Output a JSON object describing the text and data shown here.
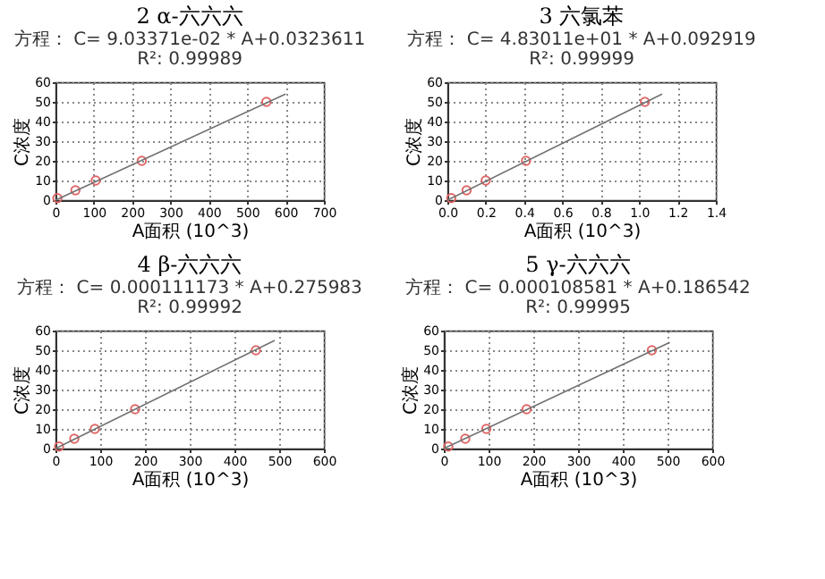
{
  "chart_data": [
    {
      "type": "scatter",
      "title": "2 α-六六六",
      "subtitle": "方程： C= 9.03371e-02 * A+0.0323611",
      "annotations": [
        "R²: 0.99989"
      ],
      "xlabel": "A面积 (10^3)",
      "ylabel": "C浓度",
      "xlim": [
        0,
        700
      ],
      "xticks": [
        0,
        100,
        200,
        300,
        400,
        500,
        600,
        700
      ],
      "ylim": [
        0,
        60
      ],
      "yticks": [
        0,
        10,
        20,
        30,
        40,
        50,
        60
      ],
      "grid": true,
      "series": [
        {
          "marker": "circle",
          "color": "#e06666",
          "x": [
            5,
            52,
            105,
            225,
            550
          ],
          "values": [
            1,
            5,
            10,
            20,
            50
          ]
        },
        {
          "type": "line",
          "color": "#707070",
          "x": [
            0,
            600
          ],
          "values": [
            0,
            54
          ]
        }
      ]
    },
    {
      "type": "scatter",
      "title": "3 六氯苯",
      "subtitle": "方程： C= 4.83011e+01 * A+0.092919",
      "annotations": [
        "R²: 0.99999"
      ],
      "xlabel": "A面积 (10^3)",
      "ylabel": "C浓度",
      "xlim": [
        0,
        1.4
      ],
      "xticks": [
        {
          "value": 0,
          "label": "0.0"
        },
        {
          "value": 0.2,
          "label": "0.2"
        },
        {
          "value": 0.4,
          "label": "0.4"
        },
        {
          "value": 0.6,
          "label": "0.6"
        },
        {
          "value": 0.8,
          "label": "0.8"
        },
        {
          "value": 1,
          "label": "1.0"
        },
        {
          "value": 1.2,
          "label": "1.2"
        },
        {
          "value": 1.4,
          "label": "1.4"
        }
      ],
      "ylim": [
        0,
        60
      ],
      "yticks": [
        0,
        10,
        20,
        30,
        40,
        50,
        60
      ],
      "grid": true,
      "series": [
        {
          "marker": "circle",
          "color": "#e06666",
          "x": [
            0.02,
            0.1,
            0.2,
            0.41,
            1.03
          ],
          "values": [
            1,
            5,
            10,
            20,
            50
          ]
        },
        {
          "type": "line",
          "color": "#707070",
          "x": [
            0,
            1.12
          ],
          "values": [
            0,
            54
          ]
        }
      ]
    },
    {
      "type": "scatter",
      "title": "4 β-六六六",
      "subtitle": "方程： C= 0.000111173 * A+0.275983",
      "annotations": [
        "R²: 0.99992"
      ],
      "xlabel": "A面积 (10^3)",
      "ylabel": "C浓度",
      "xlim": [
        0,
        600
      ],
      "xticks": [
        0,
        100,
        200,
        300,
        400,
        500,
        600
      ],
      "ylim": [
        0,
        60
      ],
      "yticks": [
        0,
        10,
        20,
        30,
        40,
        50,
        60
      ],
      "grid": true,
      "series": [
        {
          "marker": "circle",
          "color": "#e06666",
          "x": [
            8,
            42,
            88,
            178,
            448
          ],
          "values": [
            1,
            5,
            10,
            20,
            50
          ]
        },
        {
          "type": "line",
          "color": "#707070",
          "x": [
            0,
            490
          ],
          "values": [
            0,
            55
          ]
        }
      ]
    },
    {
      "type": "scatter",
      "title": "5 γ-六六六",
      "subtitle": "方程： C= 0.000108581 * A+0.186542",
      "annotations": [
        "R²: 0.99995"
      ],
      "xlabel": "A面积 (10^3)",
      "ylabel": "C浓度",
      "xlim": [
        0,
        600
      ],
      "xticks": [
        0,
        100,
        200,
        300,
        400,
        500,
        600
      ],
      "ylim": [
        0,
        60
      ],
      "yticks": [
        0,
        10,
        20,
        30,
        40,
        50,
        60
      ],
      "grid": true,
      "series": [
        {
          "marker": "circle",
          "color": "#e06666",
          "x": [
            10,
            48,
            95,
            185,
            465
          ],
          "values": [
            1,
            5,
            10,
            20,
            50
          ]
        },
        {
          "type": "line",
          "color": "#707070",
          "x": [
            0,
            505
          ],
          "values": [
            0,
            54
          ]
        }
      ]
    }
  ]
}
